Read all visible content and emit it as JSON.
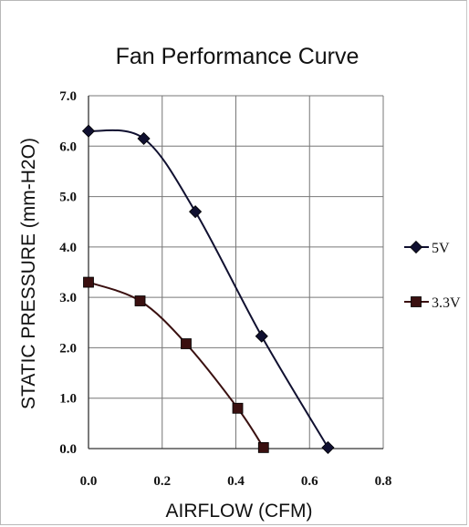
{
  "chart_data": {
    "type": "line",
    "title": "Fan Performance Curve",
    "xlabel": "AIRFLOW (CFM)",
    "ylabel": "STATIC PRESSURE (mm-H2O)",
    "xlim": [
      0,
      0.8
    ],
    "ylim": [
      0,
      7.0
    ],
    "x_ticks": [
      "0.0",
      "0.2",
      "0.4",
      "0.6",
      "0.8"
    ],
    "y_ticks": [
      "0.0",
      "1.0",
      "2.0",
      "3.0",
      "4.0",
      "5.0",
      "6.0",
      "7.0"
    ],
    "grid": true,
    "legend_position": "right",
    "series": [
      {
        "name": "5V",
        "marker": "diamond",
        "color": "#101030",
        "points": [
          [
            0.0,
            6.3
          ],
          [
            0.15,
            6.15
          ],
          [
            0.29,
            4.7
          ],
          [
            0.47,
            2.23
          ],
          [
            0.65,
            0.02
          ]
        ]
      },
      {
        "name": "3.3V",
        "marker": "square",
        "color": "#3a1010",
        "points": [
          [
            0.0,
            3.3
          ],
          [
            0.14,
            2.93
          ],
          [
            0.265,
            2.08
          ],
          [
            0.405,
            0.8
          ],
          [
            0.475,
            0.02
          ]
        ]
      }
    ]
  }
}
